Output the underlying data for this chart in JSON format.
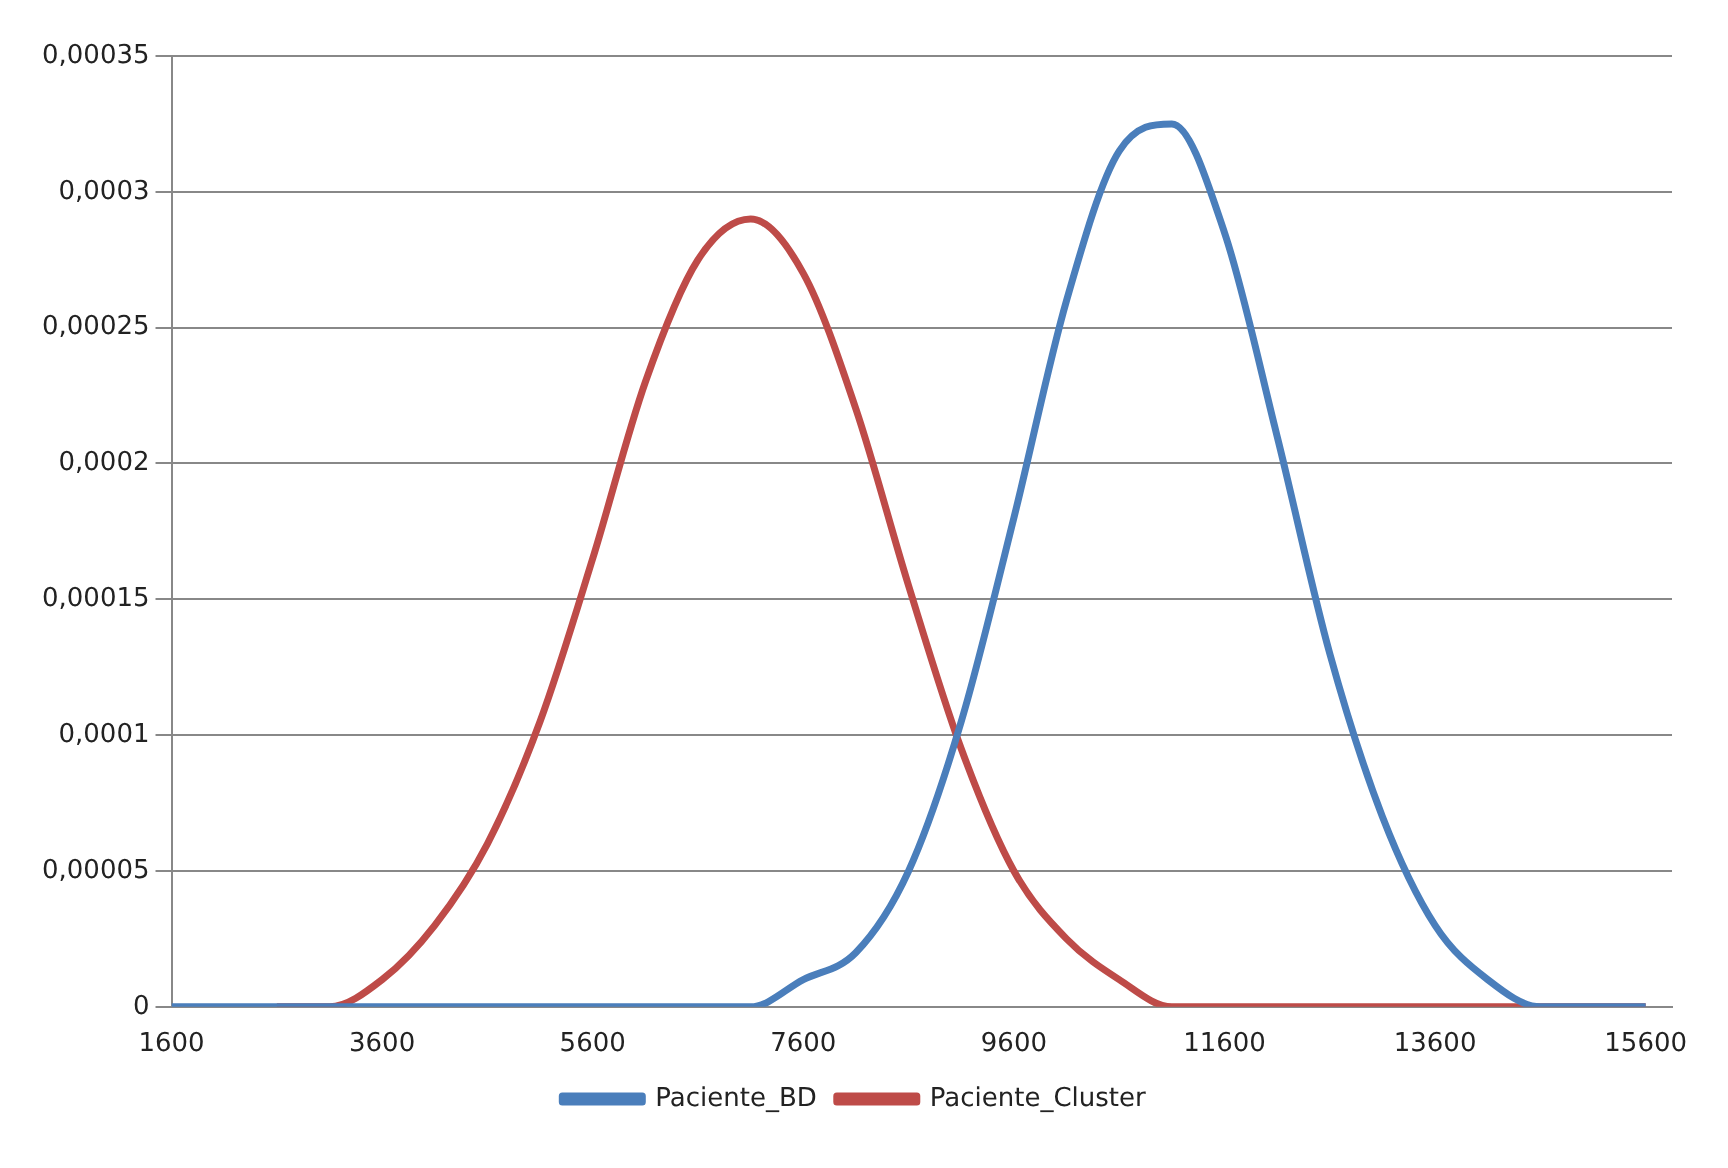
{
  "chart_data": {
    "type": "line",
    "x": [
      1600,
      2100,
      2600,
      3100,
      3600,
      4100,
      4600,
      5100,
      5600,
      6100,
      6600,
      7100,
      7600,
      8100,
      8600,
      9100,
      9600,
      10100,
      10600,
      11100,
      11600,
      12100,
      12600,
      13100,
      13600,
      14100,
      14600,
      15100,
      15600
    ],
    "series": [
      {
        "name": "Paciente_BD",
        "color": "#4a7ebb",
        "values": [
          0,
          0,
          0,
          0,
          0,
          0,
          0,
          0,
          0,
          0,
          0,
          0,
          1e-05,
          2e-05,
          5e-05,
          0.000105,
          0.00018,
          0.00026,
          0.000315,
          0.000325,
          0.000285,
          0.00021,
          0.00013,
          7e-05,
          3e-05,
          1e-05,
          0,
          0,
          0
        ]
      },
      {
        "name": "Paciente_Cluster",
        "color": "#be4b48",
        "values": [
          null,
          null,
          0,
          0,
          1e-05,
          3e-05,
          6e-05,
          0.000105,
          0.000165,
          0.00023,
          0.000275,
          0.00029,
          0.00027,
          0.00022,
          0.000155,
          9.5e-05,
          5e-05,
          2.5e-05,
          1e-05,
          0,
          0,
          0,
          0,
          0,
          0,
          0,
          0,
          0,
          0
        ]
      }
    ],
    "xlim": [
      1600,
      15850
    ],
    "xticks": [
      1600,
      3600,
      5600,
      7600,
      9600,
      11600,
      13600,
      15600
    ],
    "ylim": [
      0,
      0.00035
    ],
    "yticks": [
      {
        "value": 0,
        "label": "0"
      },
      {
        "value": 5e-05,
        "label": "0,00005"
      },
      {
        "value": 0.0001,
        "label": "0,0001"
      },
      {
        "value": 0.00015,
        "label": "0,00015"
      },
      {
        "value": 0.0002,
        "label": "0,0002"
      },
      {
        "value": 0.00025,
        "label": "0,00025"
      },
      {
        "value": 0.0003,
        "label": "0,0003"
      },
      {
        "value": 0.00035,
        "label": "0,00035"
      }
    ],
    "grid": "y",
    "legend": "bottom",
    "marker": "none",
    "line_style": "solid"
  }
}
